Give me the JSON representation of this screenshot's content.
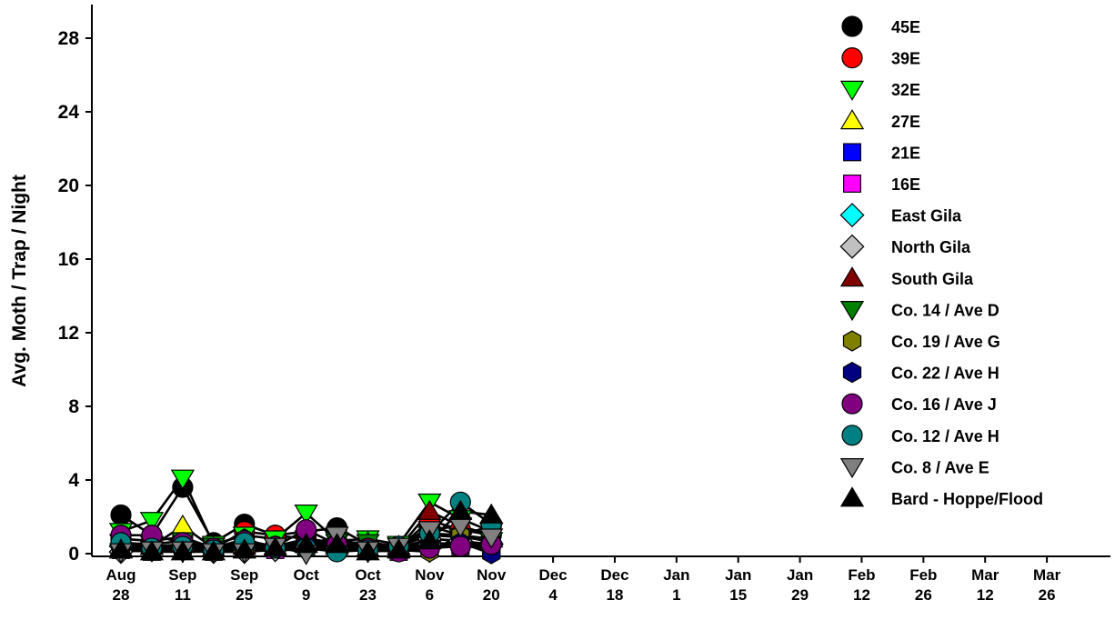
{
  "chart_data": {
    "type": "line",
    "title": "",
    "xlabel": "",
    "ylabel": "Avg. Moth / Trap / Night",
    "ylim": [
      0,
      30
    ],
    "y_ticks": [
      0,
      4,
      8,
      12,
      16,
      20,
      24,
      28
    ],
    "x_range": [
      0,
      220
    ],
    "x_ticks": [
      {
        "x": 0,
        "label": [
          "Aug",
          "28"
        ]
      },
      {
        "x": 14,
        "label": [
          "Sep",
          "11"
        ]
      },
      {
        "x": 28,
        "label": [
          "Sep",
          "25"
        ]
      },
      {
        "x": 42,
        "label": [
          "Oct",
          "9"
        ]
      },
      {
        "x": 56,
        "label": [
          "Oct",
          "23"
        ]
      },
      {
        "x": 70,
        "label": [
          "Nov",
          "6"
        ]
      },
      {
        "x": 84,
        "label": [
          "Nov",
          "20"
        ]
      },
      {
        "x": 98,
        "label": [
          "Dec",
          "4"
        ]
      },
      {
        "x": 112,
        "label": [
          "Dec",
          "18"
        ]
      },
      {
        "x": 126,
        "label": [
          "Jan",
          "1"
        ]
      },
      {
        "x": 140,
        "label": [
          "Jan",
          "15"
        ]
      },
      {
        "x": 154,
        "label": [
          "Jan",
          "29"
        ]
      },
      {
        "x": 168,
        "label": [
          "Feb",
          "12"
        ]
      },
      {
        "x": 182,
        "label": [
          "Feb",
          "26"
        ]
      },
      {
        "x": 196,
        "label": [
          "Mar",
          "12"
        ]
      },
      {
        "x": 210,
        "label": [
          "Mar",
          "26"
        ]
      }
    ],
    "x": [
      0,
      7,
      14,
      21,
      28,
      35,
      42,
      49,
      56,
      63,
      70,
      77,
      84
    ],
    "series": [
      {
        "name": "45E",
        "marker": "circle",
        "color": "#000000",
        "values": [
          2.1,
          1.0,
          3.6,
          0.6,
          1.6,
          1.0,
          1.2,
          1.4,
          0.5,
          0.3,
          1.5,
          1.0,
          1.5
        ]
      },
      {
        "name": "39E",
        "marker": "circle",
        "color": "#ff0000",
        "values": [
          0.8,
          0.7,
          0.9,
          0.3,
          1.2,
          1.0,
          0.8,
          0.6,
          0.4,
          0.3,
          1.8,
          1.3,
          1.0
        ]
      },
      {
        "name": "32E",
        "marker": "triangle-down",
        "color": "#00ff00",
        "values": [
          1.2,
          1.8,
          4.1,
          0.5,
          1.0,
          0.8,
          2.2,
          0.7,
          0.8,
          0.5,
          2.8,
          1.9,
          1.2
        ]
      },
      {
        "name": "27E",
        "marker": "triangle-up",
        "color": "#ffff00",
        "values": [
          0.5,
          0.4,
          1.5,
          0.3,
          0.6,
          0.4,
          0.7,
          0.5,
          0.6,
          0.4,
          1.1,
          1.0,
          0.8
        ]
      },
      {
        "name": "21E",
        "marker": "square",
        "color": "#0000ff",
        "values": [
          0.3,
          0.2,
          0.4,
          0.2,
          0.6,
          0.3,
          0.5,
          0.9,
          0.3,
          0.2,
          0.6,
          0.5,
          0.4
        ]
      },
      {
        "name": "16E",
        "marker": "square",
        "color": "#ff00ff",
        "values": [
          0.2,
          0.1,
          0.5,
          0.1,
          0.3,
          0.2,
          0.4,
          0.3,
          0.2,
          0.1,
          0.5,
          0.4,
          0.3
        ]
      },
      {
        "name": "East Gila",
        "marker": "diamond",
        "color": "#00ffff",
        "values": [
          0.4,
          0.2,
          0.3,
          0.2,
          0.2,
          0.3,
          0.2,
          0.3,
          0.2,
          0.3,
          0.5,
          0.6,
          0.5
        ]
      },
      {
        "name": "North Gila",
        "marker": "diamond",
        "color": "#c0c0c0",
        "values": [
          0.1,
          0.2,
          0.2,
          0.1,
          0.1,
          0.2,
          0.2,
          0.3,
          0.2,
          0.3,
          0.8,
          0.7,
          0.5
        ]
      },
      {
        "name": "South Gila",
        "marker": "triangle-up",
        "color": "#800000",
        "values": [
          0.3,
          0.4,
          0.5,
          0.3,
          0.4,
          0.3,
          0.6,
          0.4,
          0.3,
          0.3,
          2.3,
          1.5,
          1.0
        ]
      },
      {
        "name": "Co. 14 / Ave D",
        "marker": "triangle-down",
        "color": "#008000",
        "values": [
          0.6,
          0.5,
          0.7,
          0.4,
          0.5,
          0.4,
          0.8,
          0.6,
          0.6,
          0.4,
          1.0,
          0.9,
          0.7
        ]
      },
      {
        "name": "Co. 19 / Ave G",
        "marker": "hexagon",
        "color": "#808000",
        "values": [
          0.4,
          0.3,
          0.5,
          0.3,
          0.3,
          0.3,
          0.4,
          0.5,
          0.3,
          0.2,
          0.1,
          1.0,
          0.6
        ]
      },
      {
        "name": "Co. 22 / Ave H",
        "marker": "hexagon",
        "color": "#000080",
        "values": [
          0.5,
          0.4,
          0.4,
          0.3,
          0.8,
          0.3,
          0.5,
          0.6,
          0.2,
          0.3,
          0.5,
          0.6,
          0.0
        ]
      },
      {
        "name": "Co. 16 / Ave J",
        "marker": "circle",
        "color": "#800080",
        "values": [
          1.0,
          1.0,
          0.6,
          0.3,
          0.7,
          0.4,
          1.3,
          0.5,
          0.3,
          0.1,
          0.3,
          0.4,
          0.5
        ]
      },
      {
        "name": "Co. 12 / Ave H",
        "marker": "circle",
        "color": "#008080",
        "values": [
          0.6,
          0.3,
          0.4,
          0.2,
          0.6,
          0.3,
          0.3,
          0.1,
          0.2,
          0.4,
          1.1,
          2.8,
          1.6
        ]
      },
      {
        "name": "Co. 8 / Ave E",
        "marker": "triangle-down",
        "color": "#808080",
        "values": [
          0.1,
          0.2,
          0.2,
          0.1,
          0.1,
          0.4,
          0.0,
          1.0,
          0.2,
          0.4,
          1.3,
          1.5,
          0.9
        ]
      },
      {
        "name": "Bard - Hoppe/Flood",
        "marker": "triangle-up",
        "color": "#000000",
        "values": [
          0.2,
          0.1,
          0.1,
          0.1,
          0.2,
          0.3,
          0.5,
          0.5,
          0.1,
          0.2,
          0.7,
          2.3,
          2.1
        ]
      }
    ],
    "grid": false,
    "legend_position": "top-right"
  }
}
